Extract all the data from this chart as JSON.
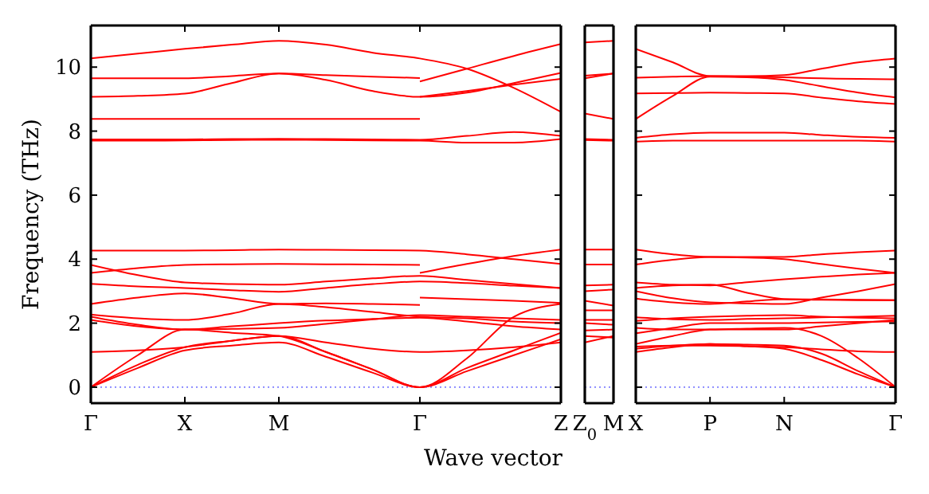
{
  "chart_data": [
    {
      "type": "line",
      "xlabel": "Wave vector",
      "ylabel": "Frequency (THz)",
      "categories": [
        "Γ",
        null,
        "X",
        null,
        "M",
        null,
        null,
        "Γ",
        null,
        null,
        "Z"
      ],
      "ylim": [
        -0.5,
        11.3
      ],
      "yticks": [
        0,
        2,
        4,
        6,
        8,
        10
      ],
      "ref_lines": [
        {
          "axis": "y",
          "value": 0,
          "line_style": "dotted",
          "color": "#8080ff"
        }
      ],
      "series": [
        {
          "color": "#ff0000",
          "values": [
            10.27,
            10.42,
            10.57,
            10.7,
            10.82,
            10.7,
            10.45,
            10.27,
            9.95,
            9.35,
            8.6
          ]
        },
        {
          "color": "#ff0000",
          "values": [
            9.65,
            9.65,
            9.65,
            9.72,
            9.8,
            9.75,
            9.7,
            9.66,
            null,
            null,
            null
          ]
        },
        {
          "color": "#ff0000",
          "values": [
            9.07,
            9.1,
            9.17,
            9.5,
            9.8,
            9.6,
            9.25,
            9.07,
            9.2,
            9.5,
            9.82
          ]
        },
        {
          "color": "#ff0000",
          "values": [
            8.38,
            8.38,
            8.38,
            8.38,
            8.38,
            8.38,
            8.38,
            8.38,
            null,
            null,
            null
          ]
        },
        {
          "color": "#ff0000",
          "values": [
            7.74,
            7.74,
            7.74,
            7.75,
            7.76,
            7.75,
            7.74,
            7.73,
            7.85,
            7.97,
            7.85
          ]
        },
        {
          "color": "#ff0000",
          "values": [
            7.7,
            7.7,
            7.71,
            7.72,
            7.73,
            7.72,
            7.71,
            7.7,
            7.64,
            7.64,
            7.75
          ]
        },
        {
          "color": "#ff0000",
          "values": [
            4.27,
            4.27,
            4.27,
            4.28,
            4.3,
            4.29,
            4.28,
            4.27,
            4.15,
            4.0,
            3.85
          ]
        },
        {
          "color": "#ff0000",
          "values": [
            3.57,
            3.72,
            3.82,
            3.84,
            3.85,
            3.84,
            3.83,
            3.82,
            null,
            null,
            null
          ]
        },
        {
          "color": "#ff0000",
          "values": [
            3.82,
            3.5,
            3.27,
            3.22,
            3.2,
            3.3,
            3.4,
            3.48,
            3.35,
            3.22,
            3.1
          ]
        },
        {
          "color": "#ff0000",
          "values": [
            3.23,
            3.15,
            3.1,
            3.03,
            2.98,
            3.1,
            3.22,
            3.3,
            3.25,
            3.17,
            3.1
          ]
        },
        {
          "color": "#ff0000",
          "values": [
            2.6,
            2.8,
            2.93,
            2.78,
            2.6,
            2.62,
            2.6,
            2.57,
            null,
            null,
            null
          ]
        },
        {
          "color": "#ff0000",
          "values": [
            2.27,
            2.15,
            2.1,
            2.3,
            2.6,
            2.5,
            2.35,
            2.2,
            2.15,
            2.05,
            2.0
          ]
        },
        {
          "color": "#ff0000",
          "values": [
            2.2,
            1.95,
            1.8,
            1.9,
            2.0,
            2.08,
            2.13,
            2.17,
            2.05,
            1.9,
            1.8
          ]
        },
        {
          "color": "#ff0000",
          "values": [
            2.1,
            1.9,
            1.8,
            1.82,
            1.85,
            1.98,
            2.12,
            2.25,
            2.2,
            2.15,
            2.1
          ]
        },
        {
          "color": "#ff0000",
          "values": [
            1.1,
            1.15,
            1.25,
            1.45,
            1.6,
            1.4,
            1.2,
            1.1,
            1.15,
            1.25,
            1.4
          ]
        },
        {
          "color": "#ff0000",
          "values": [
            0,
            1.0,
            1.8,
            1.7,
            1.6,
            1.1,
            0.55,
            0,
            0.9,
            2.2,
            2.6
          ]
        },
        {
          "color": "#ff0000",
          "values": [
            0,
            0.7,
            1.25,
            1.45,
            1.6,
            1.1,
            0.55,
            0,
            0.6,
            1.15,
            1.7
          ]
        },
        {
          "color": "#ff0000",
          "values": [
            0,
            0.6,
            1.15,
            1.3,
            1.4,
            0.95,
            0.45,
            0,
            0.5,
            1.0,
            1.5
          ]
        },
        {
          "color": "#ff0000",
          "values": [
            null,
            null,
            null,
            null,
            null,
            null,
            null,
            9.55,
            9.95,
            10.35,
            10.72
          ]
        },
        {
          "color": "#ff0000",
          "values": [
            null,
            null,
            null,
            null,
            null,
            null,
            null,
            9.07,
            9.25,
            9.45,
            9.63
          ]
        },
        {
          "color": "#ff0000",
          "values": [
            null,
            null,
            null,
            null,
            null,
            null,
            null,
            3.57,
            3.85,
            4.1,
            4.3
          ]
        },
        {
          "color": "#ff0000",
          "values": [
            null,
            null,
            null,
            null,
            null,
            null,
            null,
            2.8,
            2.75,
            2.7,
            2.63
          ]
        }
      ]
    },
    {
      "type": "line",
      "categories": [
        "Z$_{0}$",
        "M"
      ],
      "ylim": [
        -0.5,
        11.3
      ],
      "tick_labels": "x",
      "ref_lines": [
        {
          "axis": "y",
          "value": 0,
          "line_style": "dotted",
          "color": "#8080ff"
        }
      ],
      "series": [
        {
          "color": "#ff0000",
          "values": [
            10.77,
            10.82
          ]
        },
        {
          "color": "#ff0000",
          "values": [
            9.73,
            9.8
          ]
        },
        {
          "color": "#ff0000",
          "values": [
            9.65,
            9.8
          ]
        },
        {
          "color": "#ff0000",
          "values": [
            8.55,
            8.38
          ]
        },
        {
          "color": "#ff0000",
          "values": [
            7.75,
            7.73
          ]
        },
        {
          "color": "#ff0000",
          "values": [
            7.72,
            7.7
          ]
        },
        {
          "color": "#ff0000",
          "values": [
            4.3,
            4.3
          ]
        },
        {
          "color": "#ff0000",
          "values": [
            3.83,
            3.83
          ]
        },
        {
          "color": "#ff0000",
          "values": [
            3.18,
            3.2
          ]
        },
        {
          "color": "#ff0000",
          "values": [
            3.0,
            3.05
          ]
        },
        {
          "color": "#ff0000",
          "values": [
            2.7,
            2.55
          ]
        },
        {
          "color": "#ff0000",
          "values": [
            2.4,
            2.4
          ]
        },
        {
          "color": "#ff0000",
          "values": [
            2.1,
            2.1
          ]
        },
        {
          "color": "#ff0000",
          "values": [
            2.0,
            1.95
          ]
        },
        {
          "color": "#ff0000",
          "values": [
            1.77,
            1.8
          ]
        },
        {
          "color": "#ff0000",
          "values": [
            1.6,
            1.55
          ]
        },
        {
          "color": "#ff0000",
          "values": [
            1.4,
            1.6
          ]
        }
      ]
    },
    {
      "type": "line",
      "categories": [
        "X",
        null,
        "P",
        null,
        "N",
        null,
        null,
        "Γ"
      ],
      "ylim": [
        -0.5,
        11.3
      ],
      "yticks": [
        0,
        2,
        4,
        6,
        8,
        10
      ],
      "tick_labels": "x",
      "ref_lines": [
        {
          "axis": "y",
          "value": 0,
          "line_style": "dotted",
          "color": "#8080ff"
        }
      ],
      "series": [
        {
          "color": "#ff0000",
          "values": [
            10.57,
            10.15,
            9.72,
            9.72,
            9.75,
            9.95,
            10.15,
            10.27
          ]
        },
        {
          "color": "#ff0000",
          "values": [
            9.67,
            9.7,
            9.72,
            9.7,
            9.68,
            9.65,
            9.63,
            9.62
          ]
        },
        {
          "color": "#ff0000",
          "values": [
            9.18,
            9.19,
            9.2,
            9.19,
            9.18,
            9.05,
            8.93,
            8.85
          ]
        },
        {
          "color": "#ff0000",
          "values": [
            8.38,
            9.1,
            9.7,
            9.68,
            9.6,
            9.4,
            9.2,
            9.05
          ]
        },
        {
          "color": "#ff0000",
          "values": [
            7.79,
            7.9,
            7.95,
            7.95,
            7.95,
            7.88,
            7.82,
            7.79
          ]
        },
        {
          "color": "#ff0000",
          "values": [
            7.67,
            7.7,
            7.7,
            7.7,
            7.7,
            7.7,
            7.7,
            7.67
          ]
        },
        {
          "color": "#ff0000",
          "values": [
            4.3,
            4.15,
            4.07,
            4.07,
            4.07,
            4.15,
            4.22,
            4.27
          ]
        },
        {
          "color": "#ff0000",
          "values": [
            3.83,
            3.98,
            4.07,
            4.05,
            4.0,
            3.85,
            3.7,
            3.57
          ]
        },
        {
          "color": "#ff0000",
          "values": [
            3.27,
            3.2,
            3.18,
            3.28,
            3.37,
            3.45,
            3.52,
            3.57
          ]
        },
        {
          "color": "#ff0000",
          "values": [
            3.1,
            3.18,
            3.2,
            2.95,
            2.75,
            2.73,
            2.72,
            2.72
          ]
        },
        {
          "color": "#ff0000",
          "values": [
            3.0,
            2.78,
            2.65,
            2.62,
            2.6,
            2.8,
            3.0,
            3.22
          ]
        },
        {
          "color": "#ff0000",
          "values": [
            2.77,
            2.65,
            2.6,
            2.68,
            2.75,
            2.74,
            2.73,
            2.72
          ]
        },
        {
          "color": "#ff0000",
          "values": [
            2.18,
            2.12,
            2.1,
            2.13,
            2.15,
            2.18,
            2.2,
            2.23
          ]
        },
        {
          "color": "#ff0000",
          "values": [
            2.07,
            2.15,
            2.2,
            2.23,
            2.25,
            2.2,
            2.17,
            2.15
          ]
        },
        {
          "color": "#ff0000",
          "values": [
            1.85,
            1.8,
            1.8,
            1.8,
            1.8,
            1.9,
            2.0,
            2.1
          ]
        },
        {
          "color": "#ff0000",
          "values": [
            1.68,
            1.85,
            2.0,
            2.0,
            2.0,
            2.02,
            2.04,
            2.05
          ]
        },
        {
          "color": "#ff0000",
          "values": [
            1.27,
            1.3,
            1.3,
            1.28,
            1.25,
            1.18,
            1.12,
            1.1
          ]
        },
        {
          "color": "#ff0000",
          "values": [
            1.1,
            1.25,
            1.35,
            1.28,
            1.2,
            0.85,
            0.4,
            0
          ]
        },
        {
          "color": "#ff0000",
          "values": [
            1.35,
            1.6,
            1.8,
            1.83,
            1.85,
            1.6,
            0.9,
            0
          ]
        },
        {
          "color": "#ff0000",
          "values": [
            1.2,
            1.3,
            1.35,
            1.33,
            1.3,
            1.05,
            0.5,
            0
          ]
        }
      ]
    }
  ]
}
